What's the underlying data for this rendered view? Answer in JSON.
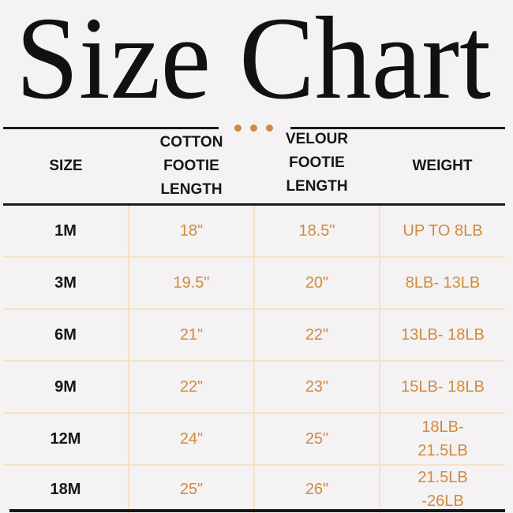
{
  "title": "Size Chart",
  "colors": {
    "accent": "#d08a3f",
    "grid": "#f6e2c9",
    "text": "#161616",
    "background": "#f4f2f2"
  },
  "headers": [
    "SIZE",
    "COTTON FOOTIE LENGTH",
    "VELOUR FOOTIE LENGTH",
    "WEIGHT"
  ],
  "rows": [
    {
      "size": "1M",
      "cotton": "18\"",
      "velour": "18.5\"",
      "weight": "UP TO 8LB"
    },
    {
      "size": "3M",
      "cotton": "19.5\"",
      "velour": "20\"",
      "weight": "8LB- 13LB"
    },
    {
      "size": "6M",
      "cotton": "21\"",
      "velour": "22\"",
      "weight": "13LB- 18LB"
    },
    {
      "size": "9M",
      "cotton": "22\"",
      "velour": "23\"",
      "weight": "15LB- 18LB"
    },
    {
      "size": "12M",
      "cotton": "24\"",
      "velour": "25\"",
      "weight": "18LB- 21.5LB"
    },
    {
      "size": "18M",
      "cotton": "25\"",
      "velour": "26\"",
      "weight": "21.5LB -26LB"
    }
  ]
}
